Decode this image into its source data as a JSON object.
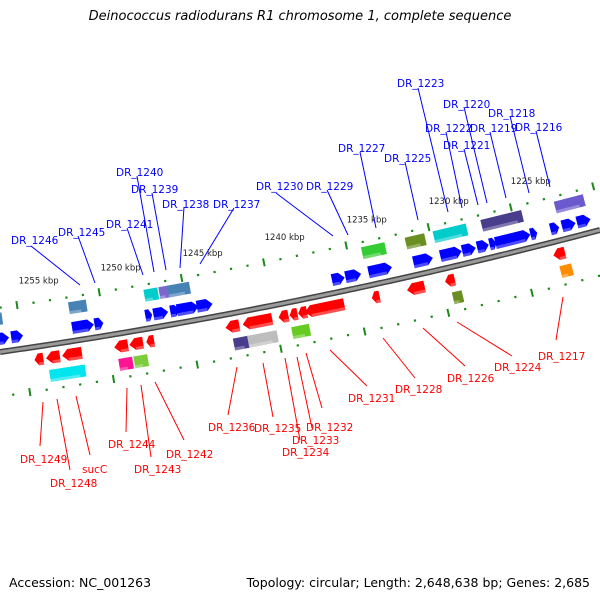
{
  "title": "Deinococcus radiodurans R1 chromosome 1, complete sequence",
  "footer": {
    "accession": "Accession: NC_001263",
    "topology": "Topology: circular; Length: 2,648,638 bp; Genes: 2,685"
  },
  "colors": {
    "forward": "#0000ff",
    "reverse": "#ff0000",
    "backbone": "#777777",
    "ticks": "#1a8a1a"
  },
  "scale_labels": [
    "1255 kbp",
    "1250 kbp",
    "1245 kbp",
    "1240 kbp",
    "1235 kbp",
    "1230 kbp",
    "1225 kbp"
  ],
  "forward_genes": [
    "DR_1246",
    "DR_1245",
    "DR_1241",
    "DR_1240",
    "DR_1239",
    "DR_1238",
    "DR_1237",
    "DR_1230",
    "DR_1229",
    "DR_1227",
    "DR_1225",
    "DR_1223",
    "DR_1222",
    "DR_1221",
    "DR_1220",
    "DR_1219",
    "DR_1218",
    "DR_1216"
  ],
  "reverse_genes": [
    "DR_1249",
    "DR_1248",
    "sucC",
    "DR_1244",
    "DR_1243",
    "DR_1242",
    "DR_1236",
    "DR_1235",
    "DR_1234",
    "DR_1233",
    "DR_1232",
    "DR_1231",
    "DR_1228",
    "DR_1226",
    "DR_1224",
    "DR_1217"
  ]
}
